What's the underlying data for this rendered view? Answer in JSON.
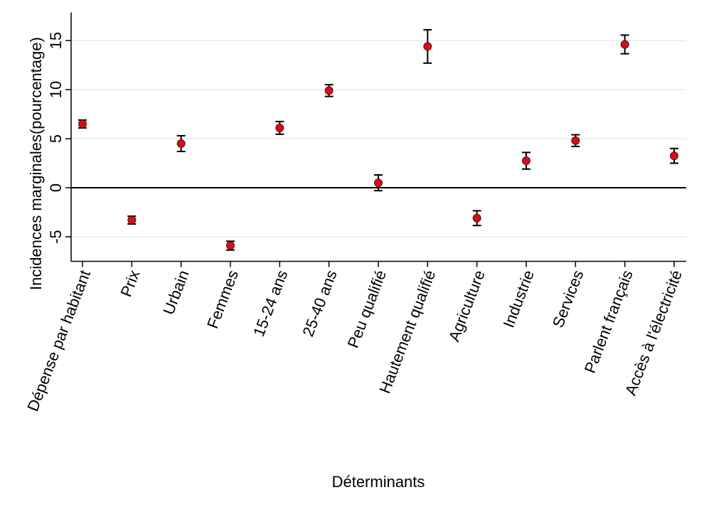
{
  "chart_data": {
    "type": "errorbar",
    "x_label": "Déterminants",
    "y_label": "Incidences marginales(pourcentage)",
    "categories": [
      "Dépense par habitant",
      "Prix",
      "Urbain",
      "Femmes",
      "15-24 ans",
      "25-40 ans",
      "Peu qualifié",
      "Hautement qualifié",
      "Agriculture",
      "Industrie",
      "Services",
      "Parlent français",
      "Accès à l'électricité"
    ],
    "values": [
      6.5,
      -3.3,
      4.5,
      -5.9,
      6.1,
      9.9,
      0.5,
      14.4,
      -3.1,
      2.75,
      4.8,
      14.6,
      3.25
    ],
    "errors": [
      0.4,
      0.4,
      0.8,
      0.45,
      0.65,
      0.6,
      0.8,
      1.7,
      0.75,
      0.85,
      0.6,
      0.95,
      0.75
    ],
    "color": "#d0101c",
    "ylim": [
      -7.5,
      17.5
    ],
    "yticks": [
      -5,
      0,
      5,
      10,
      15
    ],
    "grid": true,
    "zero_line": true
  }
}
